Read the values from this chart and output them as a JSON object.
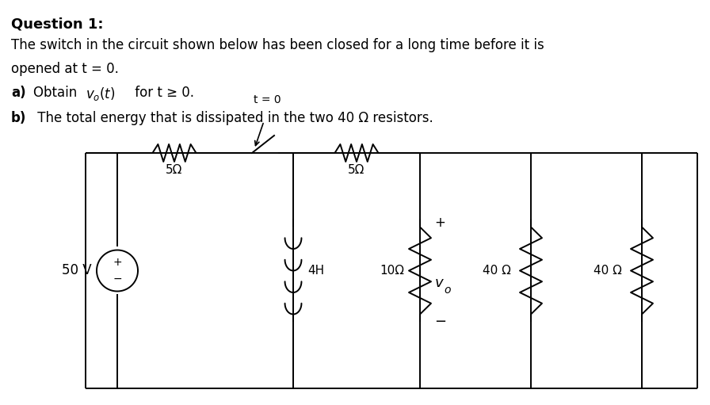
{
  "bg_color": "#ffffff",
  "title_bold": "Question 1:",
  "line1": "The switch in the circuit shown below has been closed for a long time before it is",
  "line2": "opened at t = 0.",
  "line_a_bold": "a)",
  "line_a_rest": " for t ≥ 0.",
  "line_b_bold": "b)",
  "line_b_text": " The total energy that is dissipated in the two 40 Ω resistors.",
  "label_5ohm": "5Ω",
  "label_4H": "4H",
  "label_10ohm": "10Ω",
  "label_40ohm_1": "40 Ω",
  "label_40ohm_2": "40 Ω",
  "label_50V": "50 V",
  "label_t0": "t = 0",
  "label_plus": "+",
  "label_minus": "−",
  "fig_w": 8.96,
  "fig_h": 5.11,
  "dpi": 100
}
